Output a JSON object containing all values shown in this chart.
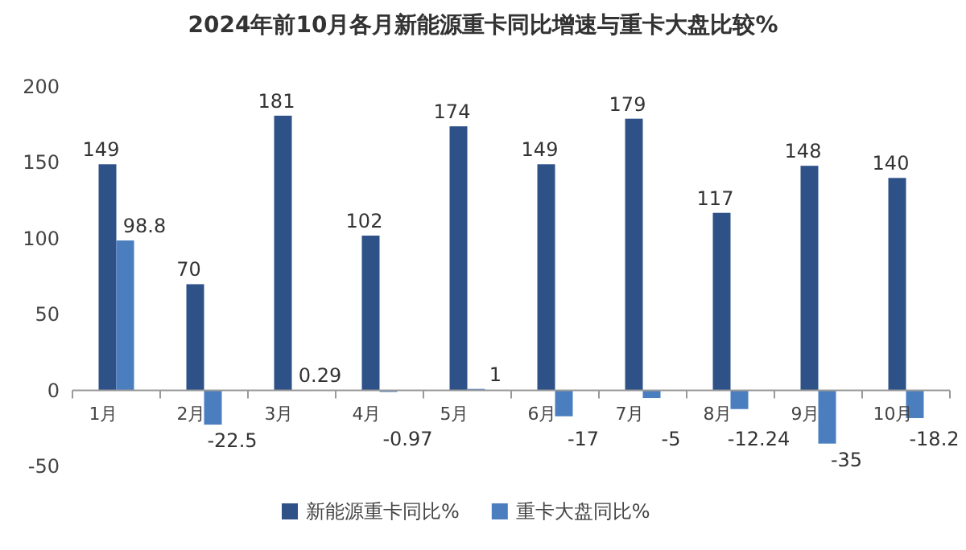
{
  "chart_data": {
    "type": "bar",
    "title": "2024年前10月各月新能源重卡同比增速与重卡大盘比较%",
    "categories": [
      "1月",
      "2月",
      "3月",
      "4月",
      "5月",
      "6月",
      "7月",
      "8月",
      "9月",
      "10月"
    ],
    "series": [
      {
        "name": "新能源重卡同比%",
        "color": "#2e5288",
        "values": [
          149,
          70,
          181,
          102,
          174,
          149,
          179,
          117,
          148,
          140
        ]
      },
      {
        "name": "重卡大盘同比%",
        "color": "#4a7ebf",
        "values": [
          98.8,
          -22.5,
          0.29,
          -0.97,
          1,
          -17,
          -5,
          -12.24,
          -35,
          -18.2
        ]
      }
    ],
    "ylim": [
      -50,
      200
    ],
    "yticks": [
      -50,
      0,
      50,
      100,
      150,
      200
    ],
    "data_labels": true,
    "legend": "bottom"
  }
}
